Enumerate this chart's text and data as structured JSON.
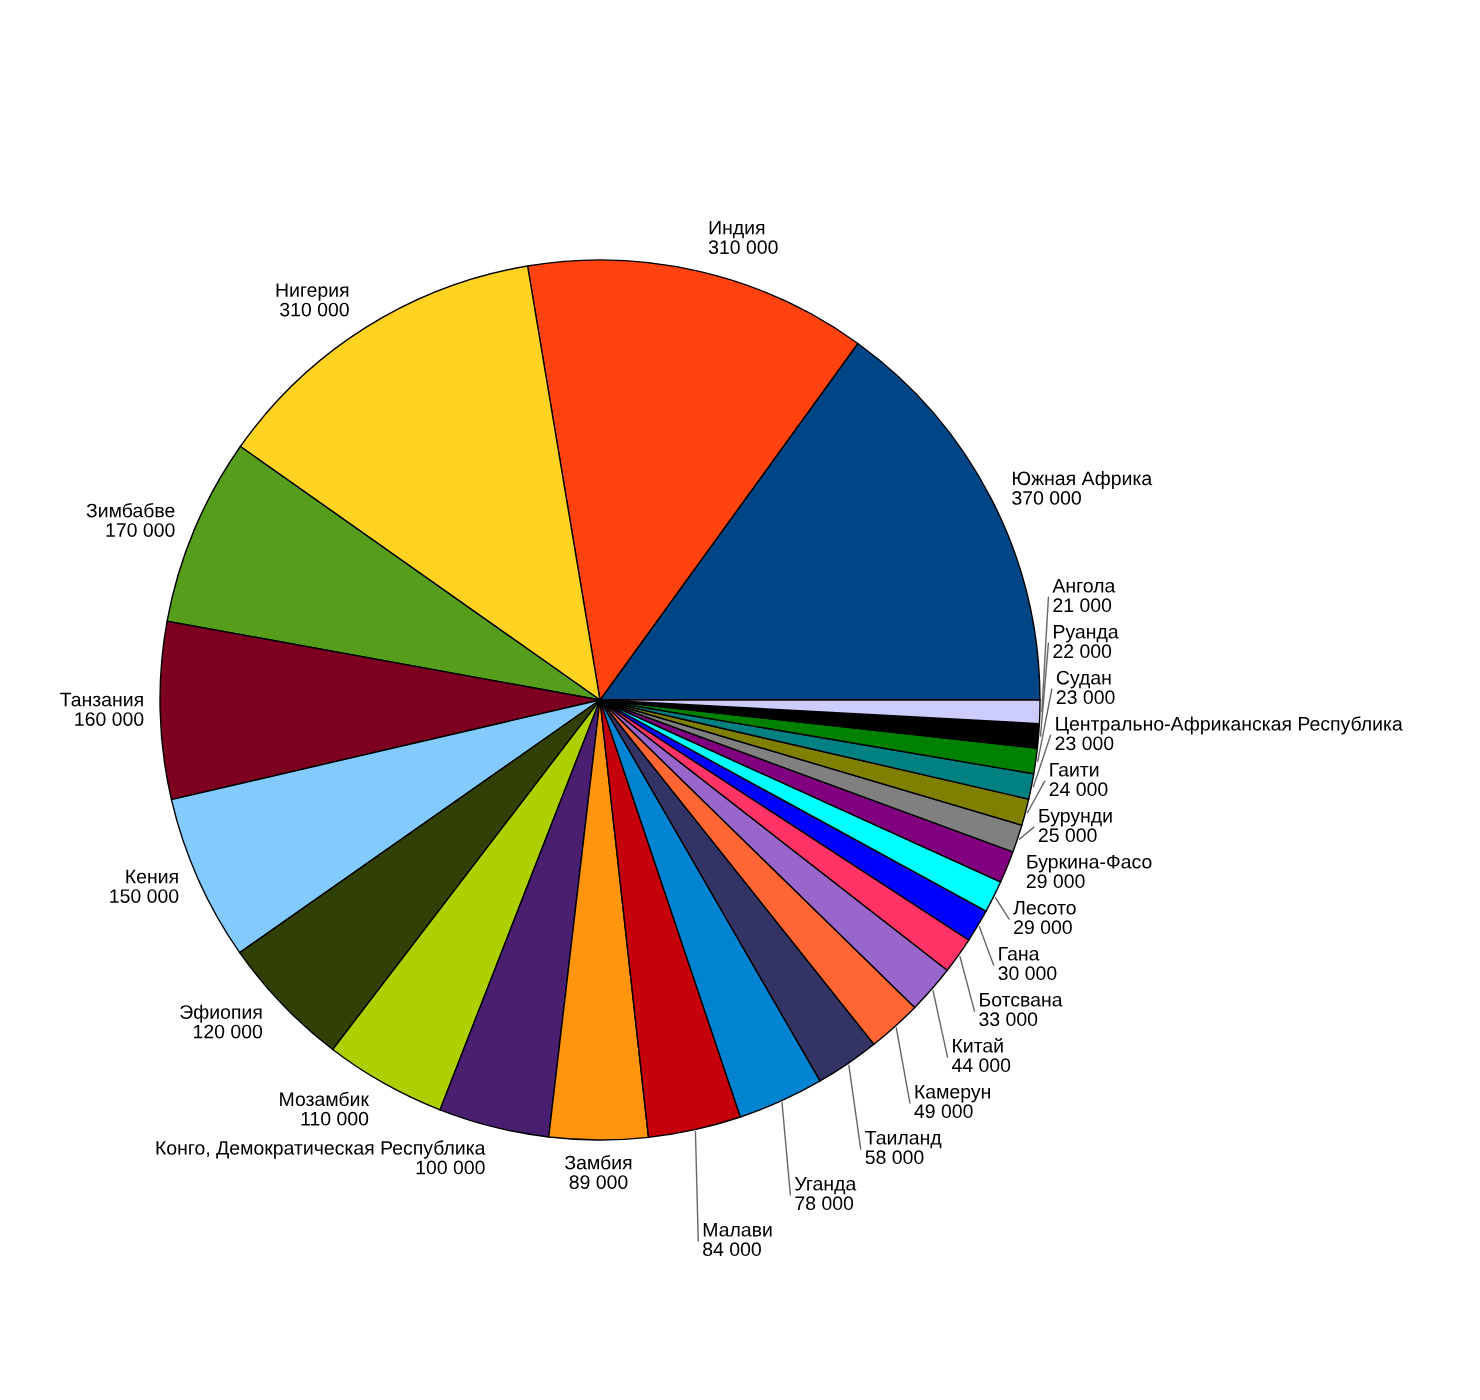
{
  "chart_data": {
    "type": "pie",
    "categories": [
      "Южная Африка",
      "Индия",
      "Нигерия",
      "Зимбабве",
      "Танзания",
      "Кения",
      "Эфиопия",
      "Мозамбик",
      "Конго, Демократическая Республика",
      "Замбия",
      "Малави",
      "Уганда",
      "Таиланд",
      "Камерун",
      "Китай",
      "Ботсвана",
      "Гана",
      "Лесото",
      "Буркина-Фасо",
      "Бурунди",
      "Гаити",
      "Центрально-Африканская Республика",
      "Судан",
      "Руанда",
      "Ангола"
    ],
    "values": [
      370000,
      310000,
      310000,
      170000,
      160000,
      150000,
      120000,
      110000,
      100000,
      89000,
      84000,
      78000,
      58000,
      49000,
      44000,
      33000,
      30000,
      29000,
      29000,
      25000,
      24000,
      23000,
      23000,
      22000,
      21000
    ],
    "value_labels": [
      "370 000",
      "310 000",
      "310 000",
      "170 000",
      "160 000",
      "150 000",
      "120 000",
      "110 000",
      "100 000",
      "89 000",
      "84 000",
      "78 000",
      "58 000",
      "49 000",
      "44 000",
      "33 000",
      "30 000",
      "29 000",
      "29 000",
      "25 000",
      "24 000",
      "23 000",
      "23 000",
      "22 000",
      "21 000"
    ],
    "colors": [
      "#004586",
      "#ff420e",
      "#ffd320",
      "#579d1c",
      "#7e0021",
      "#83caff",
      "#314004",
      "#aecf00",
      "#4b1f6f",
      "#ff950e",
      "#c5000b",
      "#0084d1",
      "#333366",
      "#ff6633",
      "#9966cc",
      "#ff3366",
      "#0000ff",
      "#00ffff",
      "#800080",
      "#808080",
      "#808000",
      "#008080",
      "#008000",
      "#000000",
      "#ccccff"
    ]
  }
}
